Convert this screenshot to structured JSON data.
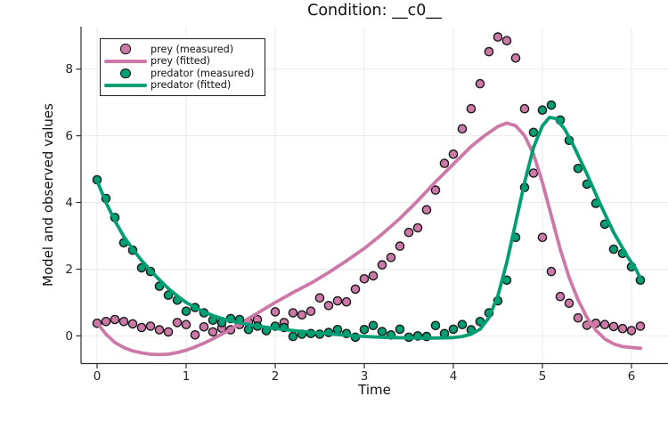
{
  "chart_data": {
    "type": "scatter+line",
    "title": "Condition: __c0__",
    "xlabel": "Time",
    "ylabel": "Model and observed values",
    "xlim": [
      -0.18,
      6.41
    ],
    "ylim": [
      -0.83,
      9.27
    ],
    "x_ticks": [
      0,
      1,
      2,
      3,
      4,
      5,
      6
    ],
    "y_ticks": [
      0,
      2,
      4,
      6,
      8
    ],
    "grid": true,
    "legend_position": "top-left",
    "colors": {
      "prey": "#CC79A7",
      "predator": "#009E73",
      "marker_outline": "#1a1a1a",
      "grid": "#ebebeb",
      "spine": "#2e2e2e",
      "text": "#242424"
    },
    "series": [
      {
        "name": "prey (measured)",
        "kind": "scatter",
        "color_key": "prey",
        "x": [
          0,
          0.1,
          0.2,
          0.3,
          0.4,
          0.5,
          0.6,
          0.7,
          0.8,
          0.9,
          1.0,
          1.1,
          1.2,
          1.3,
          1.4,
          1.5,
          1.6,
          1.7,
          1.8,
          1.9,
          2.0,
          2.1,
          2.2,
          2.3,
          2.4,
          2.5,
          2.6,
          2.7,
          2.8,
          2.9,
          3.0,
          3.1,
          3.2,
          3.3,
          3.4,
          3.5,
          3.6,
          3.7,
          3.8,
          3.9,
          4.0,
          4.1,
          4.2,
          4.3,
          4.4,
          4.5,
          4.6,
          4.7,
          4.8,
          4.9,
          5.0,
          5.1,
          5.2,
          5.3,
          5.4,
          5.5,
          5.6,
          5.7,
          5.8,
          5.9,
          6.0,
          6.1
        ],
        "y": [
          0.38,
          0.43,
          0.49,
          0.43,
          0.36,
          0.25,
          0.29,
          0.18,
          0.12,
          0.4,
          0.34,
          0.03,
          0.27,
          0.12,
          0.23,
          0.18,
          0.34,
          0.41,
          0.49,
          0.16,
          0.72,
          0.4,
          0.69,
          0.63,
          0.74,
          1.14,
          0.91,
          1.05,
          1.02,
          1.4,
          1.71,
          1.8,
          2.13,
          2.35,
          2.69,
          3.1,
          3.24,
          3.78,
          4.37,
          5.17,
          5.45,
          6.21,
          6.81,
          7.56,
          8.52,
          8.96,
          8.85,
          8.33,
          6.81,
          4.88,
          2.95,
          1.93,
          1.18,
          0.98,
          0.54,
          0.32,
          0.38,
          0.34,
          0.28,
          0.22,
          0.16,
          0.29
        ]
      },
      {
        "name": "prey (fitted)",
        "kind": "line",
        "color_key": "prey",
        "points": [
          [
            0,
            0.43
          ],
          [
            0.05,
            0.22
          ],
          [
            0.1,
            0.05
          ],
          [
            0.2,
            -0.2
          ],
          [
            0.3,
            -0.35
          ],
          [
            0.4,
            -0.45
          ],
          [
            0.5,
            -0.51
          ],
          [
            0.6,
            -0.55
          ],
          [
            0.7,
            -0.56
          ],
          [
            0.8,
            -0.55
          ],
          [
            0.9,
            -0.5
          ],
          [
            1.0,
            -0.43
          ],
          [
            1.1,
            -0.33
          ],
          [
            1.2,
            -0.22
          ],
          [
            1.3,
            -0.09
          ],
          [
            1.4,
            0.05
          ],
          [
            1.5,
            0.2
          ],
          [
            1.6,
            0.36
          ],
          [
            1.7,
            0.52
          ],
          [
            1.8,
            0.68
          ],
          [
            1.9,
            0.84
          ],
          [
            2.0,
            1.0
          ],
          [
            2.2,
            1.3
          ],
          [
            2.4,
            1.58
          ],
          [
            2.6,
            1.9
          ],
          [
            2.8,
            2.25
          ],
          [
            3.0,
            2.62
          ],
          [
            3.2,
            3.05
          ],
          [
            3.4,
            3.52
          ],
          [
            3.6,
            4.05
          ],
          [
            3.8,
            4.62
          ],
          [
            4.0,
            5.15
          ],
          [
            4.2,
            5.68
          ],
          [
            4.35,
            6.0
          ],
          [
            4.5,
            6.28
          ],
          [
            4.6,
            6.38
          ],
          [
            4.7,
            6.3
          ],
          [
            4.8,
            6.0
          ],
          [
            4.9,
            5.45
          ],
          [
            5.0,
            4.6
          ],
          [
            5.1,
            3.6
          ],
          [
            5.2,
            2.6
          ],
          [
            5.3,
            1.75
          ],
          [
            5.4,
            1.08
          ],
          [
            5.5,
            0.55
          ],
          [
            5.6,
            0.17
          ],
          [
            5.7,
            -0.09
          ],
          [
            5.8,
            -0.24
          ],
          [
            5.9,
            -0.32
          ],
          [
            6.0,
            -0.35
          ],
          [
            6.1,
            -0.37
          ]
        ]
      },
      {
        "name": "predator (measured)",
        "kind": "scatter",
        "color_key": "predator",
        "x": [
          0,
          0.1,
          0.2,
          0.3,
          0.4,
          0.5,
          0.6,
          0.7,
          0.8,
          0.9,
          1.0,
          1.1,
          1.2,
          1.3,
          1.4,
          1.5,
          1.6,
          1.7,
          1.8,
          1.9,
          2.0,
          2.1,
          2.2,
          2.3,
          2.4,
          2.5,
          2.6,
          2.7,
          2.8,
          2.9,
          3.0,
          3.1,
          3.2,
          3.3,
          3.4,
          3.5,
          3.6,
          3.7,
          3.8,
          3.9,
          4.0,
          4.1,
          4.2,
          4.3,
          4.4,
          4.5,
          4.6,
          4.7,
          4.8,
          4.9,
          5.0,
          5.1,
          5.2,
          5.3,
          5.4,
          5.5,
          5.6,
          5.7,
          5.8,
          5.9,
          6.0,
          6.1
        ],
        "y": [
          4.68,
          4.12,
          3.55,
          2.79,
          2.57,
          2.04,
          1.93,
          1.49,
          1.22,
          1.07,
          0.74,
          0.85,
          0.69,
          0.47,
          0.4,
          0.52,
          0.49,
          0.19,
          0.29,
          0.16,
          0.29,
          0.25,
          -0.02,
          0.05,
          0.07,
          0.05,
          0.1,
          0.19,
          0.07,
          -0.04,
          0.19,
          0.31,
          0.13,
          0.03,
          0.2,
          -0.04,
          0.0,
          -0.02,
          0.31,
          0.07,
          0.2,
          0.34,
          0.18,
          0.43,
          0.69,
          1.05,
          1.67,
          2.95,
          4.45,
          6.1,
          6.77,
          6.92,
          6.47,
          5.86,
          5.02,
          4.55,
          3.97,
          3.35,
          2.6,
          2.47,
          2.07,
          1.67
        ]
      },
      {
        "name": "predator (fitted)",
        "kind": "line",
        "color_key": "predator",
        "points": [
          [
            0,
            4.65
          ],
          [
            0.1,
            4.0
          ],
          [
            0.2,
            3.45
          ],
          [
            0.3,
            2.98
          ],
          [
            0.4,
            2.6
          ],
          [
            0.5,
            2.26
          ],
          [
            0.6,
            1.96
          ],
          [
            0.7,
            1.68
          ],
          [
            0.8,
            1.42
          ],
          [
            0.9,
            1.2
          ],
          [
            1.0,
            1.0
          ],
          [
            1.1,
            0.85
          ],
          [
            1.2,
            0.72
          ],
          [
            1.3,
            0.61
          ],
          [
            1.4,
            0.52
          ],
          [
            1.5,
            0.45
          ],
          [
            1.7,
            0.34
          ],
          [
            1.9,
            0.26
          ],
          [
            2.1,
            0.19
          ],
          [
            2.3,
            0.13
          ],
          [
            2.5,
            0.08
          ],
          [
            2.7,
            0.04
          ],
          [
            2.9,
            0.0
          ],
          [
            3.1,
            -0.03
          ],
          [
            3.3,
            -0.05
          ],
          [
            3.5,
            -0.06
          ],
          [
            3.7,
            -0.07
          ],
          [
            3.9,
            -0.06
          ],
          [
            4.0,
            -0.05
          ],
          [
            4.1,
            -0.02
          ],
          [
            4.2,
            0.05
          ],
          [
            4.3,
            0.2
          ],
          [
            4.4,
            0.55
          ],
          [
            4.5,
            1.2
          ],
          [
            4.6,
            2.2
          ],
          [
            4.7,
            3.4
          ],
          [
            4.8,
            4.6
          ],
          [
            4.9,
            5.65
          ],
          [
            5.0,
            6.3
          ],
          [
            5.08,
            6.55
          ],
          [
            5.15,
            6.52
          ],
          [
            5.25,
            6.2
          ],
          [
            5.35,
            5.7
          ],
          [
            5.5,
            4.85
          ],
          [
            5.65,
            3.95
          ],
          [
            5.8,
            3.1
          ],
          [
            5.95,
            2.4
          ],
          [
            6.05,
            2.0
          ],
          [
            6.1,
            1.72
          ]
        ]
      }
    ]
  }
}
